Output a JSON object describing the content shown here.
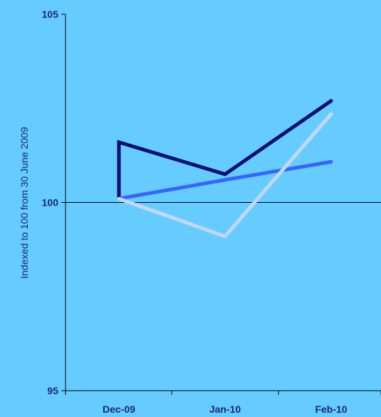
{
  "chart_data": {
    "type": "line",
    "categories": [
      "Dec-09",
      "Jan-10",
      "Feb-10"
    ],
    "ylabel": "Indexed to 100 from 30 June 2009",
    "ylim": [
      95,
      105
    ],
    "yticks": [
      "95",
      "100",
      "105"
    ],
    "grid": false,
    "reference_line": 100,
    "series": [
      {
        "values": [
          101.6,
          100.75,
          102.7
        ],
        "color": "#000e73",
        "start_from": 100.1
      },
      {
        "values": [
          100.1,
          100.6,
          101.08
        ],
        "color": "#3366ff"
      },
      {
        "values": [
          100.1,
          99.1,
          102.35
        ],
        "color": "#c2d8f7"
      }
    ]
  }
}
